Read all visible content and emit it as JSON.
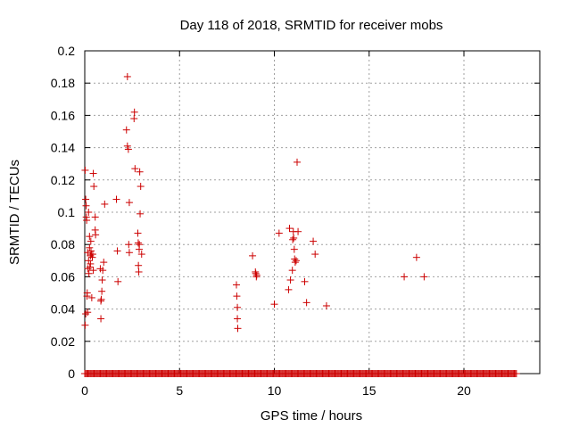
{
  "chart_data": {
    "type": "scatter",
    "title": "Day 118 of 2018, SRMTID for receiver mobs",
    "xlabel": "GPS time / hours",
    "ylabel": "SRMTID / TECUs",
    "xlim": [
      0,
      24
    ],
    "ylim": [
      0,
      0.2
    ],
    "grid": true,
    "marker": "+",
    "color": "#cc0000",
    "xticks": [
      0,
      5,
      10,
      15,
      20
    ],
    "xtick_labels": [
      "0",
      "5",
      "10",
      "15",
      "20"
    ],
    "yticks": [
      0,
      0.02,
      0.04,
      0.06,
      0.08,
      0.1,
      0.12,
      0.14,
      0.16,
      0.18,
      0.2
    ],
    "ytick_labels": [
      "0",
      "0.02",
      "0.04",
      "0.06",
      "0.08",
      "0.1",
      "0.12",
      "0.14",
      "0.16",
      "0.18",
      "0.2"
    ],
    "series": [
      {
        "name": "SRMTID",
        "points": [
          [
            0.02,
            0.126
          ],
          [
            0.05,
            0.108
          ],
          [
            0.07,
            0.104
          ],
          [
            0.08,
            0.097
          ],
          [
            0.1,
            0.095
          ],
          [
            0.12,
            0.048
          ],
          [
            0.13,
            0.05
          ],
          [
            0.15,
            0.038
          ],
          [
            0.05,
            0.037
          ],
          [
            0.02,
            0.03
          ],
          [
            0.15,
            0.075
          ],
          [
            0.17,
            0.065
          ],
          [
            0.2,
            0.07
          ],
          [
            0.2,
            0.1
          ],
          [
            0.22,
            0.062
          ],
          [
            0.25,
            0.078
          ],
          [
            0.25,
            0.085
          ],
          [
            0.27,
            0.066
          ],
          [
            0.3,
            0.068
          ],
          [
            0.3,
            0.073
          ],
          [
            0.32,
            0.082
          ],
          [
            0.33,
            0.076
          ],
          [
            0.35,
            0.074
          ],
          [
            0.37,
            0.047
          ],
          [
            0.4,
            0.072
          ],
          [
            0.42,
            0.074
          ],
          [
            0.45,
            0.064
          ],
          [
            0.45,
            0.124
          ],
          [
            0.48,
            0.116
          ],
          [
            0.55,
            0.097
          ],
          [
            0.55,
            0.089
          ],
          [
            0.57,
            0.086
          ],
          [
            0.82,
            0.065
          ],
          [
            0.85,
            0.034
          ],
          [
            0.85,
            0.045
          ],
          [
            0.87,
            0.046
          ],
          [
            0.9,
            0.051
          ],
          [
            0.92,
            0.058
          ],
          [
            0.95,
            0.064
          ],
          [
            1.0,
            0.069
          ],
          [
            1.05,
            0.105
          ],
          [
            1.67,
            0.108
          ],
          [
            1.72,
            0.076
          ],
          [
            1.75,
            0.057
          ],
          [
            2.2,
            0.151
          ],
          [
            2.25,
            0.184
          ],
          [
            2.25,
            0.141
          ],
          [
            2.3,
            0.139
          ],
          [
            2.32,
            0.08
          ],
          [
            2.35,
            0.106
          ],
          [
            2.35,
            0.075
          ],
          [
            2.6,
            0.158
          ],
          [
            2.62,
            0.162
          ],
          [
            2.65,
            0.127
          ],
          [
            2.8,
            0.087
          ],
          [
            2.82,
            0.081
          ],
          [
            2.83,
            0.067
          ],
          [
            2.85,
            0.063
          ],
          [
            2.87,
            0.077
          ],
          [
            2.88,
            0.08
          ],
          [
            2.9,
            0.125
          ],
          [
            2.92,
            0.099
          ],
          [
            2.95,
            0.116
          ],
          [
            3.0,
            0.074
          ],
          [
            8.0,
            0.055
          ],
          [
            8.02,
            0.048
          ],
          [
            8.05,
            0.041
          ],
          [
            8.05,
            0.034
          ],
          [
            8.07,
            0.028
          ],
          [
            8.85,
            0.073
          ],
          [
            9.0,
            0.063
          ],
          [
            9.02,
            0.062
          ],
          [
            9.05,
            0.06
          ],
          [
            9.07,
            0.061
          ],
          [
            10.0,
            0.043
          ],
          [
            10.25,
            0.087
          ],
          [
            10.75,
            0.052
          ],
          [
            10.8,
            0.09
          ],
          [
            10.85,
            0.058
          ],
          [
            10.95,
            0.064
          ],
          [
            10.97,
            0.083
          ],
          [
            11.0,
            0.088
          ],
          [
            11.02,
            0.084
          ],
          [
            11.05,
            0.077
          ],
          [
            11.07,
            0.071
          ],
          [
            11.1,
            0.069
          ],
          [
            11.15,
            0.07
          ],
          [
            11.2,
            0.131
          ],
          [
            11.25,
            0.088
          ],
          [
            11.6,
            0.057
          ],
          [
            11.7,
            0.044
          ],
          [
            12.05,
            0.082
          ],
          [
            12.15,
            0.074
          ],
          [
            12.75,
            0.042
          ],
          [
            16.85,
            0.06
          ],
          [
            17.5,
            0.072
          ],
          [
            17.9,
            0.06
          ]
        ]
      }
    ],
    "zero_baseline_points": {
      "description": "dense run of SRMTID = 0 values",
      "x_start": 0.0,
      "x_end": 22.8,
      "y": 0
    }
  }
}
